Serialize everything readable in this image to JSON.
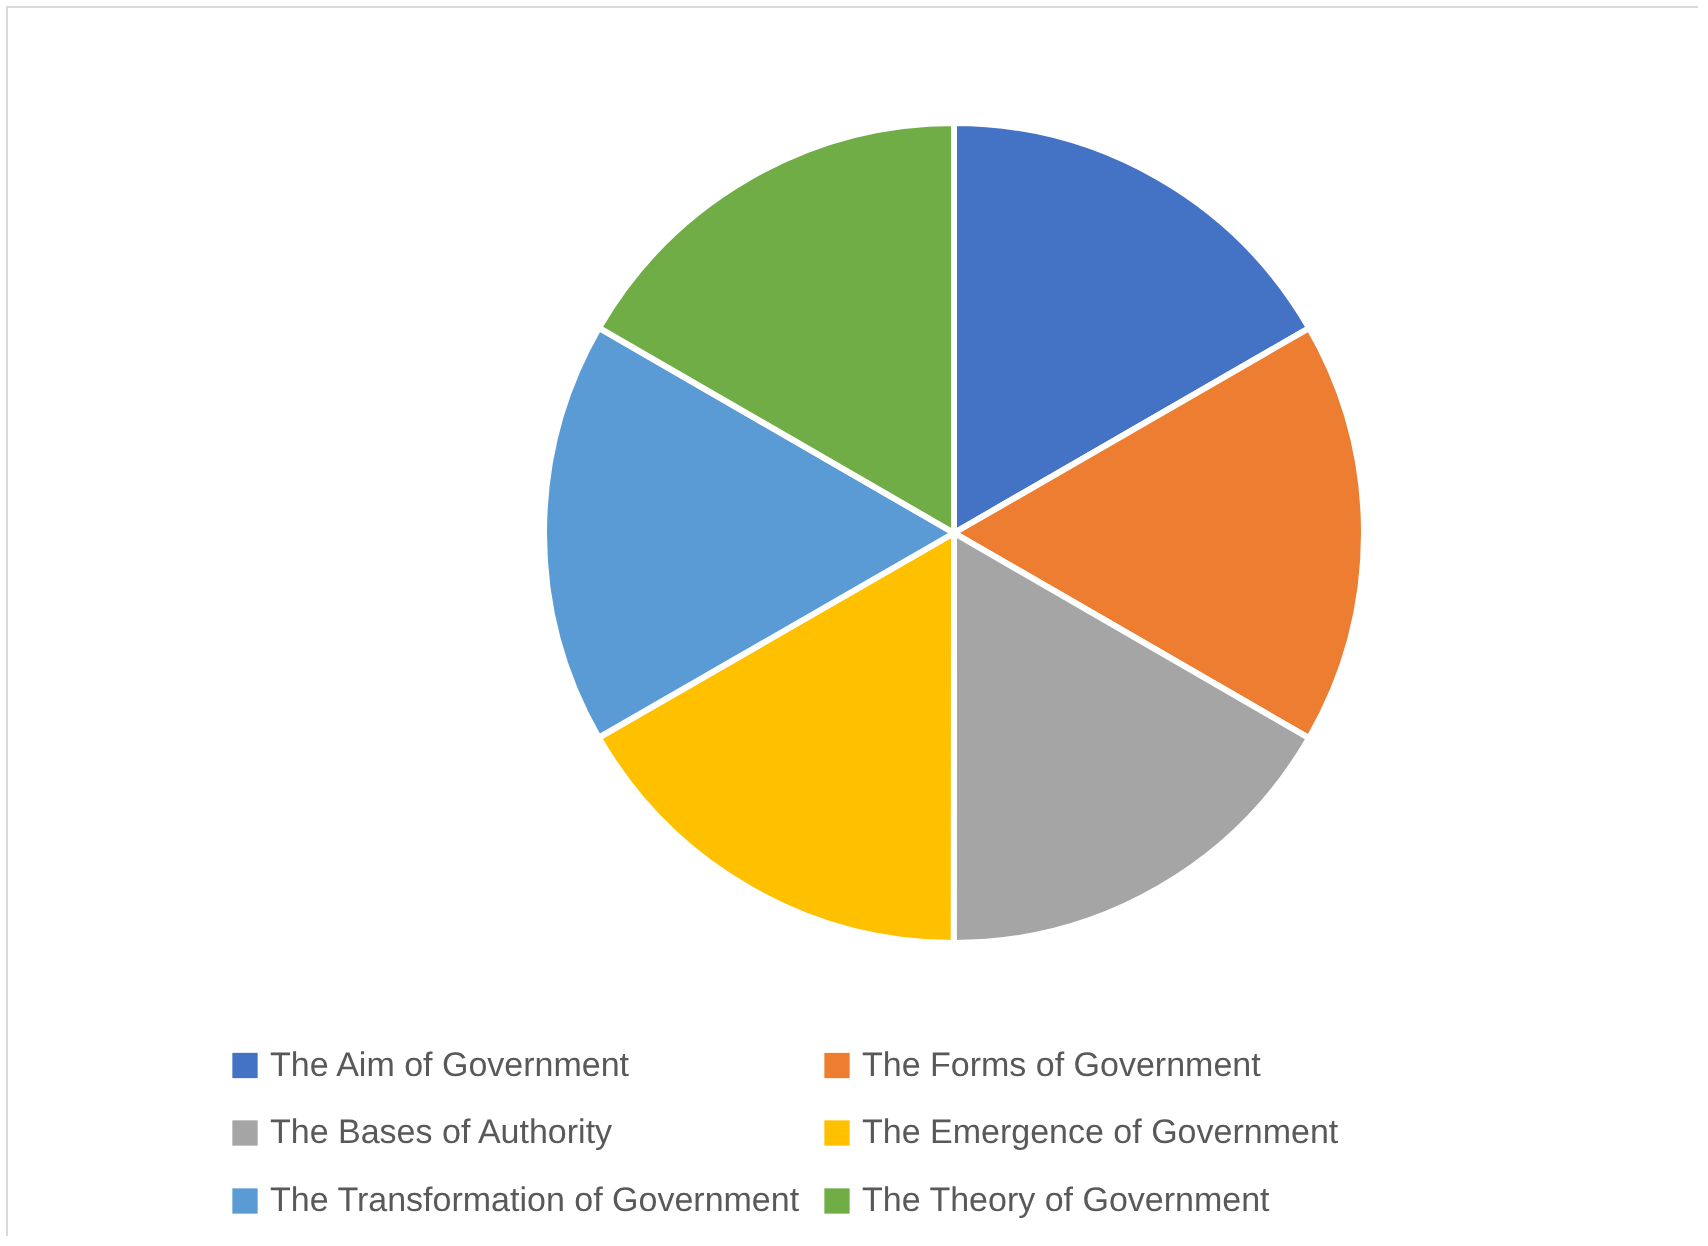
{
  "chart_data": {
    "type": "pie",
    "categories": [
      "The Aim of Government",
      "The Forms of Government",
      "The Bases of Authority",
      "The Emergence of Government",
      "The Transformation of Government",
      "The Theory of Government"
    ],
    "values": [
      16.67,
      16.67,
      16.67,
      16.67,
      16.66,
      16.66
    ],
    "colors": [
      "#4472c4",
      "#ed7d31",
      "#a5a5a5",
      "#ffc000",
      "#5b9bd5",
      "#70ad47"
    ],
    "legend": "bottom"
  }
}
